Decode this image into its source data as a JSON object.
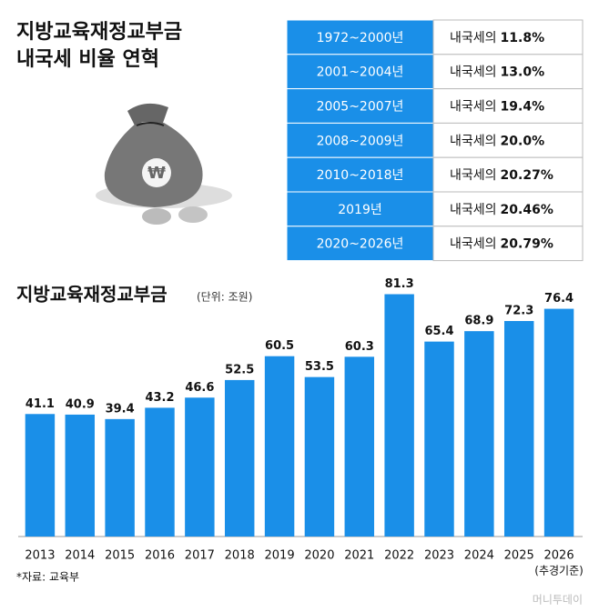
{
  "header": {
    "title_lines": [
      "지방교육재정교부금",
      "내국세 비율 연혁"
    ]
  },
  "table": {
    "rows": [
      [
        "1972~2000년",
        "내국세의",
        "11.8%"
      ],
      [
        "2001~2004년",
        "내국세의",
        "13.0%"
      ],
      [
        "2005~2007년",
        "내국세의",
        "19.4%"
      ],
      [
        "2008~2009년",
        "내국세의",
        "20.0%"
      ],
      [
        "2010~2018년",
        "내국세의",
        "20.27%"
      ],
      [
        "2019년",
        "내국세의",
        "20.46%"
      ],
      [
        "2020~2026년",
        "내국세의",
        "20.79%"
      ]
    ]
  },
  "chart_data": {
    "type": "bar",
    "title": "지방교육재정교부금",
    "subtitle": "(단위: 조원)",
    "categories": [
      "2013",
      "2014",
      "2015",
      "2016",
      "2017",
      "2018",
      "2019",
      "2020",
      "2021",
      "2022",
      "2023",
      "2024",
      "2025",
      "2026"
    ],
    "values": [
      41.1,
      40.9,
      39.4,
      43.2,
      46.6,
      52.5,
      60.5,
      53.5,
      60.3,
      81.3,
      65.4,
      68.9,
      72.3,
      76.4
    ],
    "color": "#1a8fe8",
    "ylim": [
      0,
      90
    ],
    "annotation": "(추경기준)",
    "source": "*자료: 교육부"
  },
  "credit": "머니투데이"
}
